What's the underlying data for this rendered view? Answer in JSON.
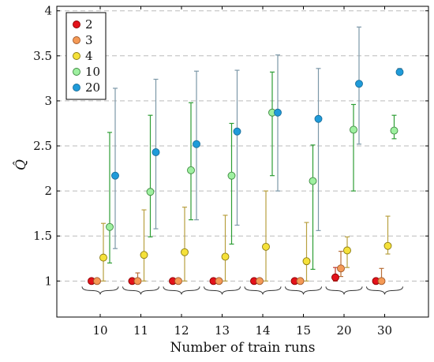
{
  "chart_data": {
    "type": "scatter",
    "title": "",
    "xlabel": "Number of train runs",
    "ylabel": "Q̂",
    "categories": [
      "10",
      "11",
      "12",
      "13",
      "14",
      "15",
      "20",
      "30"
    ],
    "ylim": [
      0.6,
      4.05
    ],
    "yticks": [
      "1",
      "1.5",
      "2",
      "2.5",
      "3",
      "3.5",
      "4"
    ],
    "grid": "horizontal-dashed",
    "legend_position": "top-left",
    "series": [
      {
        "name": "2",
        "color": "#e3121b",
        "values": [
          1,
          1,
          1,
          1,
          1,
          1,
          1.04,
          1
        ],
        "err_low": [
          null,
          null,
          null,
          null,
          null,
          null,
          1.0,
          null
        ],
        "err_high": [
          null,
          null,
          null,
          null,
          null,
          null,
          1.15,
          null
        ]
      },
      {
        "name": "3",
        "color": "#f59a56",
        "values": [
          1,
          1,
          1,
          1,
          1,
          1,
          1.14,
          1
        ],
        "err_low": [
          null,
          1.0,
          null,
          null,
          null,
          null,
          1.05,
          1.0
        ],
        "err_high": [
          null,
          1.09,
          null,
          null,
          null,
          null,
          1.33,
          1.14
        ]
      },
      {
        "name": "4",
        "color": "#f5e13a",
        "values": [
          1.26,
          1.29,
          1.32,
          1.27,
          1.38,
          1.22,
          1.34,
          1.39
        ],
        "err_low": [
          1.0,
          1.0,
          1.0,
          1.0,
          1.0,
          1.0,
          1.15,
          1.3
        ],
        "err_high": [
          1.64,
          1.79,
          1.82,
          1.73,
          2.0,
          1.65,
          1.49,
          1.72
        ]
      },
      {
        "name": "10",
        "color": "#9ef0a0",
        "values": [
          1.6,
          1.99,
          2.23,
          2.17,
          2.87,
          2.11,
          2.68,
          2.67
        ],
        "err_low": [
          1.2,
          1.49,
          1.68,
          1.41,
          2.17,
          1.13,
          2.0,
          2.58
        ],
        "err_high": [
          2.65,
          2.84,
          2.98,
          2.75,
          3.32,
          2.51,
          2.96,
          2.84
        ]
      },
      {
        "name": "20",
        "color": "#1f9bd9",
        "values": [
          2.17,
          2.43,
          2.52,
          2.66,
          2.87,
          2.8,
          3.19,
          3.32
        ],
        "err_low": [
          1.36,
          1.58,
          1.68,
          1.62,
          2.0,
          1.56,
          2.52,
          3.31
        ],
        "err_high": [
          3.14,
          3.24,
          3.33,
          3.34,
          3.51,
          3.36,
          3.82,
          3.36
        ]
      }
    ]
  }
}
